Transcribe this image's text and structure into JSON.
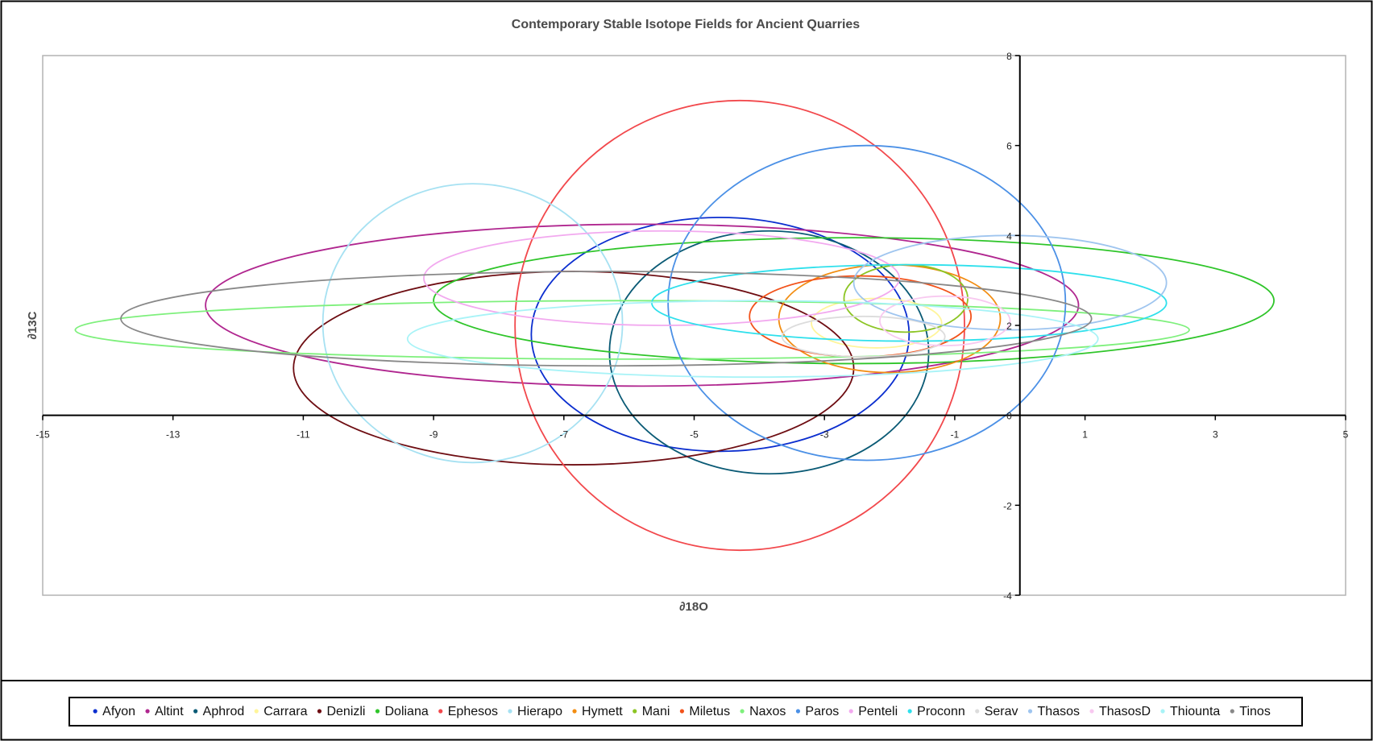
{
  "chart_data": {
    "type": "scatter",
    "title": "Contemporary Stable Isotope Fields for Ancient Quarries",
    "xlabel": "∂18O",
    "ylabel": "∂13C",
    "xlim": [
      -15,
      5
    ],
    "ylim": [
      -4,
      8
    ],
    "x_ticks": [
      -15,
      -13,
      -11,
      -9,
      -7,
      -5,
      -3,
      -1,
      1,
      3,
      5
    ],
    "y_ticks": [
      -4,
      -2,
      0,
      2,
      4,
      6,
      8
    ],
    "grid": false,
    "legend_position": "bottom",
    "series": [
      {
        "name": "Afyon",
        "color": "#0b2ecf",
        "ellipse": {
          "cx": -4.6,
          "cy": 1.8,
          "rx": 2.9,
          "ry": 2.6
        }
      },
      {
        "name": "Altint",
        "color": "#b0268f",
        "ellipse": {
          "cx": -5.8,
          "cy": 2.45,
          "rx": 6.7,
          "ry": 1.8
        }
      },
      {
        "name": "Aphrod",
        "color": "#0a5a75",
        "ellipse": {
          "cx": -3.85,
          "cy": 1.4,
          "rx": 2.45,
          "ry": 2.7
        }
      },
      {
        "name": "Carrara",
        "color": "#fff59a",
        "ellipse": {
          "cx": -2.2,
          "cy": 2.05,
          "rx": 1.0,
          "ry": 0.55
        }
      },
      {
        "name": "Denizli",
        "color": "#6e0d12",
        "ellipse": {
          "cx": -6.85,
          "cy": 1.05,
          "rx": 4.3,
          "ry": 2.15
        }
      },
      {
        "name": "Doliana",
        "color": "#2fc52a",
        "ellipse": {
          "cx": -2.55,
          "cy": 2.55,
          "rx": 6.45,
          "ry": 1.4
        }
      },
      {
        "name": "Ephesos",
        "color": "#f2484c",
        "ellipse": {
          "cx": -4.3,
          "cy": 2.0,
          "rx": 3.45,
          "ry": 5.0
        }
      },
      {
        "name": "Hierapo",
        "color": "#a6e1f2",
        "ellipse": {
          "cx": -8.4,
          "cy": 2.05,
          "rx": 2.3,
          "ry": 3.1
        }
      },
      {
        "name": "Hymett",
        "color": "#f28d12",
        "ellipse": {
          "cx": -2.0,
          "cy": 2.15,
          "rx": 1.7,
          "ry": 1.2
        }
      },
      {
        "name": "Mani",
        "color": "#8cc524",
        "ellipse": {
          "cx": -1.75,
          "cy": 2.6,
          "rx": 0.95,
          "ry": 0.75
        }
      },
      {
        "name": "Miletus",
        "color": "#f2521a",
        "ellipse": {
          "cx": -2.45,
          "cy": 2.2,
          "rx": 1.7,
          "ry": 0.9
        }
      },
      {
        "name": "Naxos",
        "color": "#7ef07c",
        "ellipse": {
          "cx": -5.95,
          "cy": 1.9,
          "rx": 8.55,
          "ry": 0.65
        }
      },
      {
        "name": "Paros",
        "color": "#4b90e6",
        "ellipse": {
          "cx": -2.35,
          "cy": 2.5,
          "rx": 3.05,
          "ry": 3.5
        }
      },
      {
        "name": "Penteli",
        "color": "#f2a9ef",
        "ellipse": {
          "cx": -5.5,
          "cy": 3.05,
          "rx": 3.65,
          "ry": 1.05
        }
      },
      {
        "name": "Proconn",
        "color": "#2ee0ec",
        "ellipse": {
          "cx": -1.7,
          "cy": 2.5,
          "rx": 3.95,
          "ry": 0.85
        }
      },
      {
        "name": "Serav",
        "color": "#dcdcdc",
        "ellipse": {
          "cx": -2.4,
          "cy": 1.75,
          "rx": 1.25,
          "ry": 0.45
        }
      },
      {
        "name": "Thasos",
        "color": "#9fc5ef",
        "ellipse": {
          "cx": -0.15,
          "cy": 2.95,
          "rx": 2.4,
          "ry": 1.05
        }
      },
      {
        "name": "ThasosD",
        "color": "#f8c9f0",
        "ellipse": {
          "cx": -1.15,
          "cy": 2.1,
          "rx": 1.0,
          "ry": 0.55
        }
      },
      {
        "name": "Thiounta",
        "color": "#a8f3f7",
        "ellipse": {
          "cx": -4.1,
          "cy": 1.7,
          "rx": 5.3,
          "ry": 0.85
        }
      },
      {
        "name": "Tinos",
        "color": "#888888",
        "ellipse": {
          "cx": -6.35,
          "cy": 2.15,
          "rx": 7.45,
          "ry": 1.05
        }
      }
    ]
  }
}
